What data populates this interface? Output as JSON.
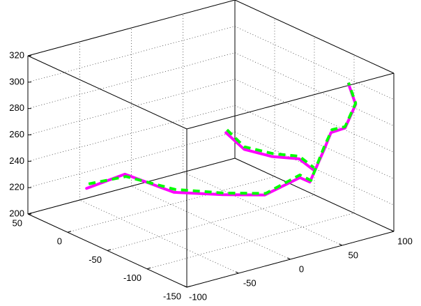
{
  "chart_data": {
    "type": "line3d",
    "xlim": [
      -100,
      100
    ],
    "xticks": [
      -100,
      -50,
      0,
      50,
      100
    ],
    "ylim": [
      -150,
      50
    ],
    "yticks": [
      -150,
      -100,
      -50,
      0,
      50
    ],
    "zlim": [
      200,
      320
    ],
    "zticks": [
      200,
      220,
      240,
      260,
      280,
      300,
      320
    ],
    "grid": true,
    "series": [
      {
        "color": "#ff00ff",
        "dashed": false,
        "x": [
          -74,
          -37,
          -5,
          27,
          52,
          86,
          88,
          94,
          93,
          99,
          100,
          100,
          null,
          76,
          86,
          90,
          93,
          92
        ],
        "y": [
          10,
          10,
          -10,
          -30,
          -50,
          -50,
          -60,
          -70,
          -80,
          -90,
          -102,
          -93,
          null,
          30,
          20,
          -10,
          -40,
          -60
        ],
        "z": [
          225,
          228,
          213,
          210,
          210,
          216,
          215,
          241,
          257,
          262,
          283,
          296,
          null,
          230,
          218,
          220,
          226,
          223
        ]
      },
      {
        "color": "#00ff00",
        "dashed": true,
        "x": [
          -72,
          -36,
          -4,
          28,
          53,
          86,
          89,
          94,
          94,
          99,
          100,
          100,
          null,
          77,
          86,
          91,
          93,
          92
        ],
        "y": [
          10,
          10,
          -10,
          -30,
          -50,
          -50,
          -60,
          -70,
          -80,
          -90,
          -102,
          -93,
          null,
          30,
          20,
          -10,
          -40,
          -60
        ],
        "z": [
          228,
          226,
          215,
          211,
          211,
          218,
          216,
          243,
          259,
          263,
          284,
          297,
          null,
          232,
          220,
          222,
          228,
          225
        ]
      }
    ]
  }
}
